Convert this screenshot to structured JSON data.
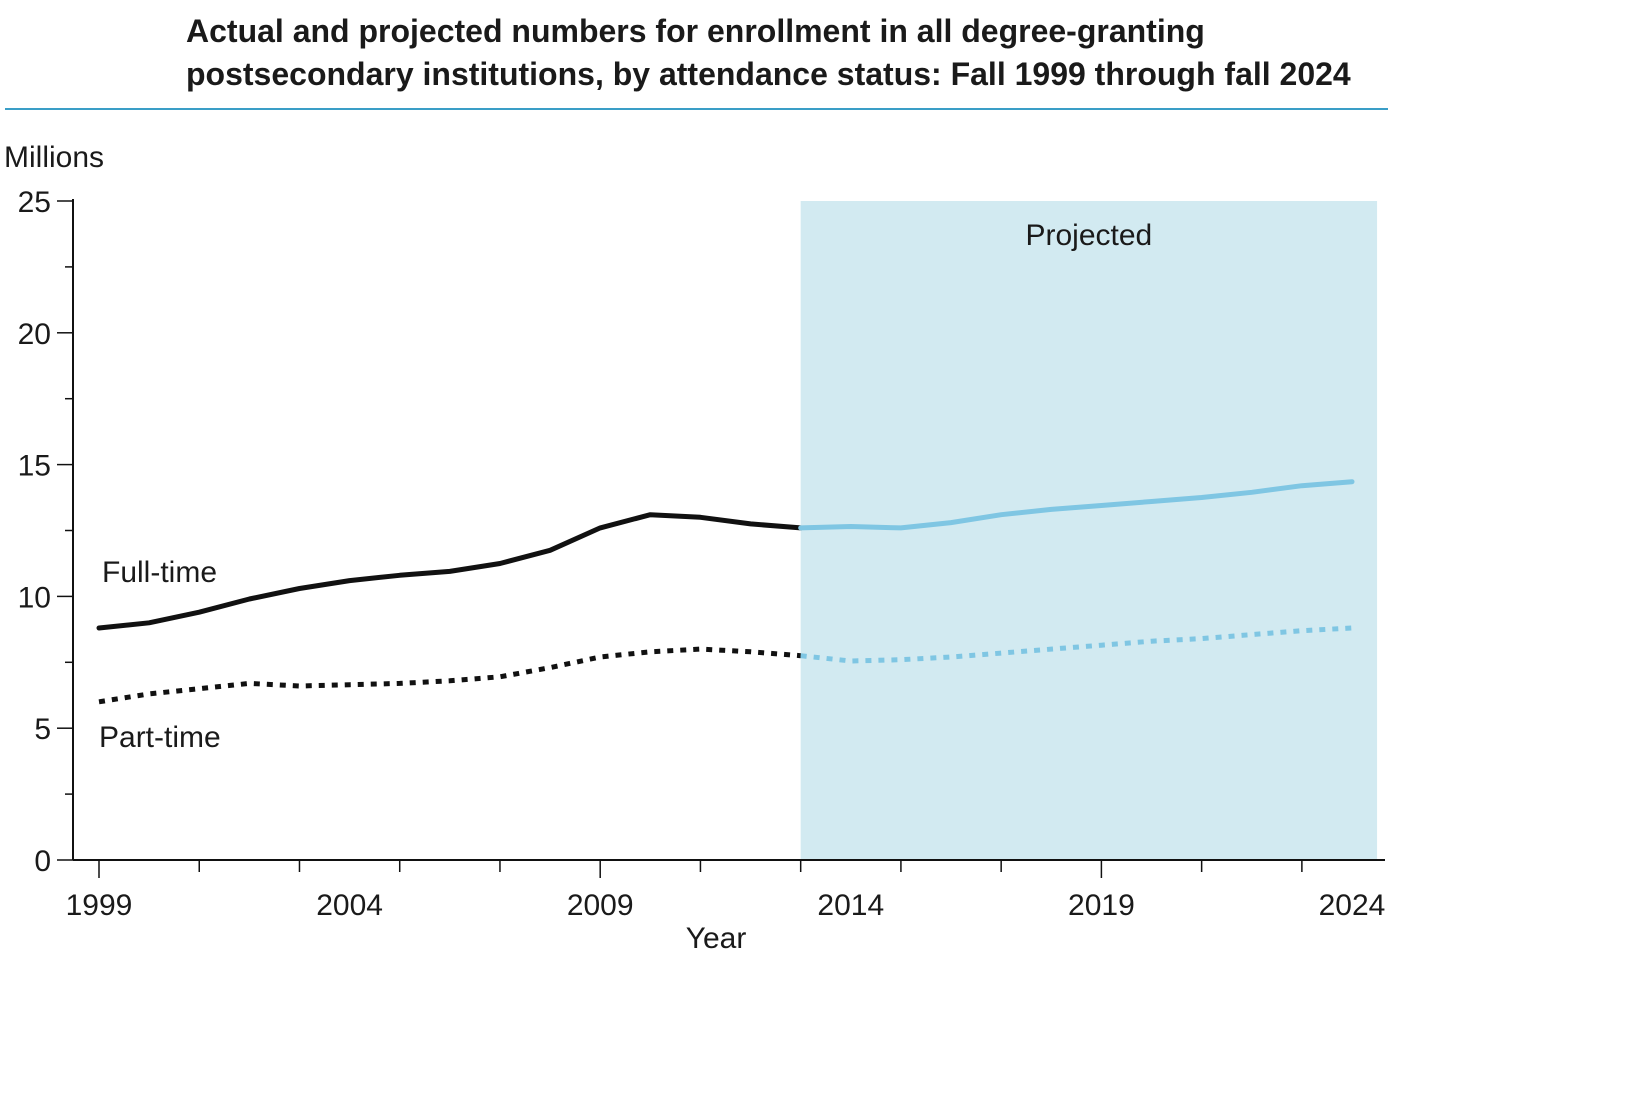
{
  "chart_data": {
    "type": "line",
    "title_lines": [
      "Actual and projected numbers for enrollment in all degree-granting",
      "postsecondary institutions, by attendance status: Fall 1999 through fall 2024"
    ],
    "ylabel": "Millions",
    "xlabel": "Year",
    "xlim": [
      1999,
      2024
    ],
    "ylim": [
      0,
      25
    ],
    "x_ticks": [
      1999,
      2004,
      2009,
      2014,
      2019,
      2024
    ],
    "y_ticks": [
      0,
      5,
      10,
      15,
      20,
      25
    ],
    "projection_start": 2013,
    "projection_end": 2024.5,
    "projection_label": "Projected",
    "colors": {
      "actual": "#111111",
      "projected": "#7fc6e3",
      "projected_band": "#d2eaf1",
      "title_rule": "#3a9ec7"
    },
    "x": [
      1999,
      2000,
      2001,
      2002,
      2003,
      2004,
      2005,
      2006,
      2007,
      2008,
      2009,
      2010,
      2011,
      2012,
      2013,
      2014,
      2015,
      2016,
      2017,
      2018,
      2019,
      2020,
      2021,
      2022,
      2023,
      2024
    ],
    "series": [
      {
        "name": "Full-time",
        "style": "solid",
        "values": [
          8.8,
          9.0,
          9.4,
          9.9,
          10.3,
          10.6,
          10.8,
          10.95,
          11.25,
          11.75,
          12.6,
          13.1,
          13.0,
          12.75,
          12.6,
          12.65,
          12.6,
          12.8,
          13.1,
          13.3,
          13.45,
          13.6,
          13.75,
          13.95,
          14.2,
          14.35
        ]
      },
      {
        "name": "Part-time",
        "style": "dotted",
        "values": [
          6.0,
          6.3,
          6.5,
          6.7,
          6.6,
          6.65,
          6.7,
          6.8,
          6.95,
          7.3,
          7.7,
          7.9,
          8.0,
          7.9,
          7.75,
          7.55,
          7.6,
          7.7,
          7.85,
          8.0,
          8.15,
          8.3,
          8.4,
          8.55,
          8.7,
          8.8
        ]
      }
    ]
  }
}
